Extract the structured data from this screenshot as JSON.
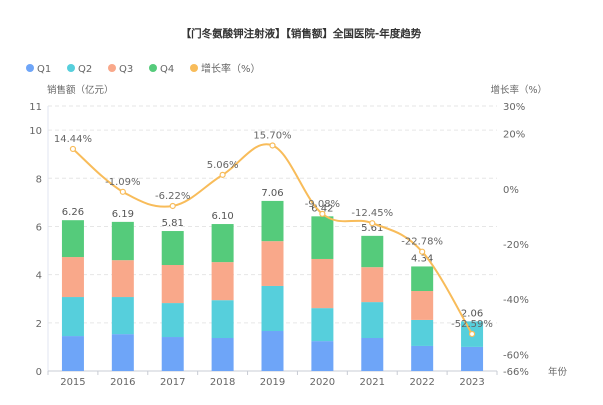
{
  "chart_data": {
    "type": "bar",
    "stacked": true,
    "title": "【门冬氨酸钾注射液】【销售额】全国医院-年度趋势",
    "xlabel": "年份",
    "ylabel": "销售额（亿元）",
    "y2label": "增长率（%）",
    "categories": [
      "2015",
      "2016",
      "2017",
      "2018",
      "2019",
      "2020",
      "2021",
      "2022",
      "2023"
    ],
    "ylim": [
      0,
      11
    ],
    "yticks": [
      0,
      2,
      4,
      6,
      8,
      10,
      11
    ],
    "y2lim": [
      -66,
      30
    ],
    "y2ticks": [
      -66,
      -60,
      -40,
      -20,
      0,
      20,
      30
    ],
    "y2tick_labels": [
      "-66%",
      "-60%",
      "-40%",
      "-20%",
      "0%",
      "20%",
      "30%"
    ],
    "grid": true,
    "legend_position": "top-left",
    "series": [
      {
        "name": "Q1",
        "color": "#6ea5f8",
        "values": [
          1.45,
          1.53,
          1.41,
          1.37,
          1.66,
          1.24,
          1.37,
          1.04,
          1.0
        ]
      },
      {
        "name": "Q2",
        "color": "#56cfdc",
        "values": [
          1.62,
          1.54,
          1.41,
          1.57,
          1.87,
          1.37,
          1.49,
          1.08,
          1.06
        ]
      },
      {
        "name": "Q3",
        "color": "#f9a88a",
        "values": [
          1.66,
          1.53,
          1.58,
          1.58,
          1.86,
          2.04,
          1.45,
          1.2,
          0
        ]
      },
      {
        "name": "Q4",
        "color": "#55cb7b",
        "values": [
          1.53,
          1.59,
          1.41,
          1.58,
          1.67,
          1.77,
          1.3,
          1.02,
          0
        ]
      }
    ],
    "totals": [
      6.26,
      6.19,
      5.81,
      6.1,
      7.06,
      6.42,
      5.61,
      4.34,
      2.06
    ],
    "total_labels": [
      "6.26",
      "6.19",
      "5.81",
      "6.10",
      "7.06",
      "6.42",
      "5.61",
      "4.34",
      "2.06"
    ],
    "growth_rate": {
      "name": "增长率（%）",
      "color": "#f8bc5a",
      "axis": "right",
      "type": "line",
      "smooth": true,
      "values": [
        14.44,
        -1.09,
        -6.22,
        5.06,
        15.7,
        -9.08,
        -12.45,
        -22.78,
        -52.59
      ],
      "labels": [
        "14.44%",
        "-1.09%",
        "-6.22%",
        "5.06%",
        "15.70%",
        "-9.08%",
        "-12.45%",
        "-22.78%",
        "-52.59%"
      ]
    }
  }
}
